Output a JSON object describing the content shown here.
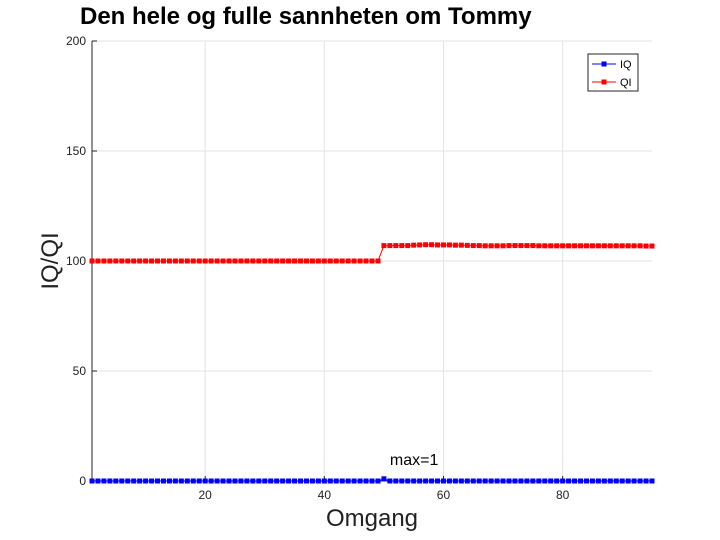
{
  "chart_data": {
    "type": "line",
    "title": "Den hele og fulle sannheten om Tommy",
    "xlabel": "Omgang",
    "ylabel": "IQ/QI",
    "xlim": [
      1,
      95
    ],
    "ylim": [
      0,
      200
    ],
    "xticks": [
      20,
      40,
      60,
      80
    ],
    "yticks": [
      0,
      50,
      100,
      150,
      200
    ],
    "grid": true,
    "legend_position": "top-right",
    "annotation": {
      "text": "max=1",
      "x": 50,
      "y": 1
    },
    "series": [
      {
        "name": "IQ",
        "color": "#0000ff",
        "marker": "square",
        "values": [
          0,
          0,
          0,
          0,
          0,
          0,
          0,
          0,
          0,
          0,
          0,
          0,
          0,
          0,
          0,
          0,
          0,
          0,
          0,
          0,
          0,
          0,
          0,
          0,
          0,
          0,
          0,
          0,
          0,
          0,
          0,
          0,
          0,
          0,
          0,
          0,
          0,
          0,
          0,
          0,
          0,
          0,
          0,
          0,
          0,
          0,
          0,
          0,
          0,
          1,
          0,
          0,
          0,
          0,
          0,
          0,
          0,
          0,
          0,
          0,
          0,
          0,
          0,
          0,
          0,
          0,
          0,
          0,
          0,
          0,
          0,
          0,
          0,
          0,
          0,
          0,
          0,
          0,
          0,
          0,
          0,
          0,
          0,
          0,
          0,
          0,
          0,
          0,
          0,
          0,
          0,
          0,
          0,
          0,
          0
        ]
      },
      {
        "name": "QI",
        "color": "#ff0000",
        "marker": "square",
        "values": [
          100,
          100,
          100,
          100,
          100,
          100,
          100,
          100,
          100,
          100,
          100,
          100,
          100,
          100,
          100,
          100,
          100,
          100,
          100,
          100,
          100,
          100,
          100,
          100,
          100,
          100,
          100,
          100,
          100,
          100,
          100,
          100,
          100,
          100,
          100,
          100,
          100,
          100,
          100,
          100,
          100,
          100,
          100,
          100,
          100,
          100,
          100,
          100,
          100,
          107,
          107,
          107,
          107,
          107,
          107.2,
          107.3,
          107.4,
          107.4,
          107.3,
          107.3,
          107.3,
          107.2,
          107.2,
          107.1,
          107,
          107,
          106.9,
          106.9,
          106.9,
          106.9,
          107,
          107,
          107,
          107,
          107,
          106.9,
          106.9,
          106.9,
          106.9,
          106.9,
          106.9,
          106.9,
          106.9,
          106.9,
          106.9,
          106.9,
          106.9,
          106.9,
          106.9,
          106.9,
          106.9,
          106.9,
          106.9,
          106.8,
          106.8
        ]
      }
    ]
  }
}
